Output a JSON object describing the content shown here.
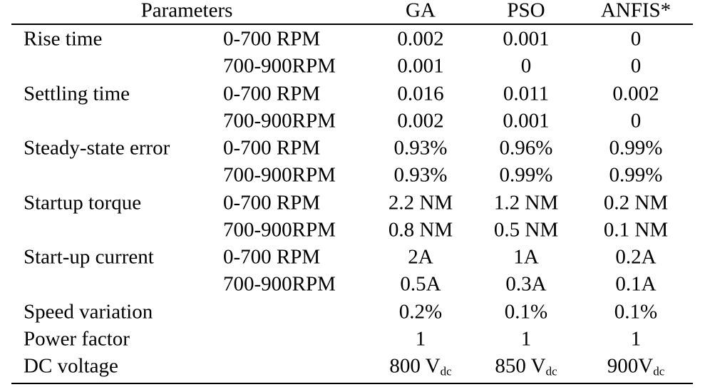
{
  "table": {
    "header": [
      "Parameters",
      "GA",
      "PSO",
      "ANFIS*"
    ],
    "rows": [
      {
        "parameter": "Rise time",
        "range": "0-700 RPM",
        "values": [
          "0.002",
          "0.001",
          "0"
        ]
      },
      {
        "parameter": null,
        "range": "700-900RPM",
        "values": [
          "0.001",
          "0",
          "0"
        ]
      },
      {
        "parameter": "Settling time",
        "range": "0-700 RPM",
        "values": [
          "0.016",
          "0.011",
          "0.002"
        ]
      },
      {
        "parameter": null,
        "range": "700-900RPM",
        "values": [
          "0.002",
          "0.001",
          "0"
        ]
      },
      {
        "parameter": "Steady-state error",
        "range": "0-700 RPM",
        "values": [
          "0.93%",
          "0.96%",
          "0.99%"
        ]
      },
      {
        "parameter": null,
        "range": "700-900RPM",
        "values": [
          "0.93%",
          "0.99%",
          "0.99%"
        ]
      },
      {
        "parameter": "Startup torque",
        "range": "0-700 RPM",
        "values": [
          "2.2 NM",
          "1.2 NM",
          "0.2 NM"
        ]
      },
      {
        "parameter": null,
        "range": "700-900RPM",
        "values": [
          "0.8 NM",
          "0.5 NM",
          "0.1 NM"
        ]
      },
      {
        "parameter": "Start-up current",
        "range": "0-700 RPM",
        "values": [
          "2A",
          "1A",
          "0.2A"
        ]
      },
      {
        "parameter": null,
        "range": "700-900RPM",
        "values": [
          "0.5A",
          "0.3A",
          "0.1A"
        ]
      },
      {
        "parameter": "Speed variation",
        "range": null,
        "values": [
          "0.2%",
          "0.1%",
          "0.1%"
        ]
      },
      {
        "parameter": "Power factor",
        "range": null,
        "values": [
          "1",
          "1",
          "1"
        ]
      },
      {
        "parameter": "DC voltage",
        "range": null,
        "values": [
          {
            "text": "800 V",
            "sub": "dc"
          },
          {
            "text": "850 V",
            "sub": "dc"
          },
          {
            "text": "900V",
            "sub": "dc"
          }
        ]
      }
    ]
  }
}
